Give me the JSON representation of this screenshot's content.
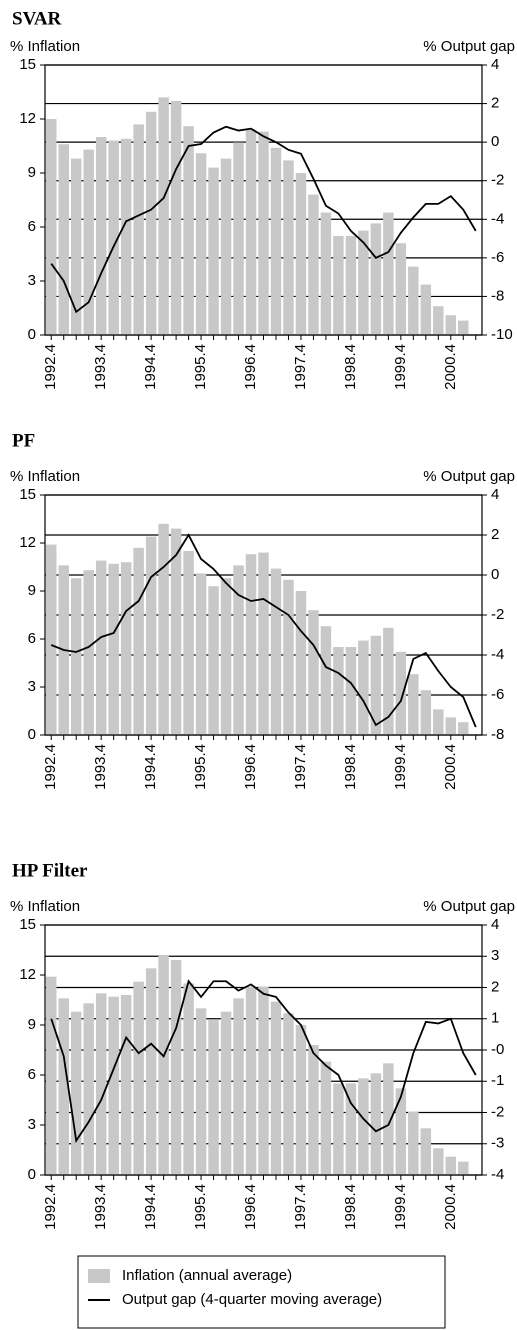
{
  "chart_data": [
    {
      "type": "bar-line",
      "title": "SVAR",
      "y_label": "% Inflation",
      "y2_label": "% Output gap",
      "categories": [
        "1992.4",
        null,
        null,
        null,
        "1993.4",
        null,
        null,
        null,
        "1994.4",
        null,
        null,
        null,
        "1995.4",
        null,
        null,
        null,
        "1996.4",
        null,
        null,
        null,
        "1997.4",
        null,
        null,
        null,
        "1998.4",
        null,
        null,
        null,
        "1999.4",
        null,
        null,
        null,
        "2000.4",
        null,
        null
      ],
      "series": [
        {
          "type": "bar",
          "color": "#c8c8c8",
          "values": [
            12.0,
            10.6,
            9.8,
            10.3,
            11.0,
            10.8,
            10.9,
            11.7,
            12.4,
            13.2,
            13.0,
            11.6,
            10.1,
            9.3,
            9.8,
            10.7,
            11.4,
            11.3,
            10.4,
            9.7,
            9.0,
            7.8,
            6.8,
            5.5,
            5.5,
            5.8,
            6.2,
            6.8,
            5.1,
            3.8,
            2.8,
            1.6,
            1.1,
            0.8,
            null
          ]
        },
        {
          "type": "line",
          "axis": "y2",
          "color": "#000000",
          "values": [
            -6.3,
            -7.2,
            -8.8,
            -8.3,
            -6.8,
            -5.4,
            -4.1,
            -3.8,
            -3.5,
            -2.9,
            -1.4,
            -0.2,
            -0.1,
            0.5,
            0.8,
            0.6,
            0.7,
            0.3,
            0.0,
            -0.4,
            -0.6,
            -1.9,
            -3.3,
            -3.7,
            -4.6,
            -5.2,
            -6.0,
            -5.7,
            -4.7,
            -3.9,
            -3.2,
            -3.2,
            -2.8,
            -3.5,
            -4.6
          ]
        }
      ],
      "ylim": [
        0,
        15
      ],
      "yticks": [
        0,
        3,
        6,
        9,
        12,
        15
      ],
      "y2lim": [
        -10,
        4
      ],
      "y2ticks": [
        -10,
        -8,
        -6,
        -4,
        -2,
        0,
        2,
        4
      ],
      "grid": "y2"
    },
    {
      "type": "bar-line",
      "title": "PF",
      "y_label": "% Inflation",
      "y2_label": "% Output gap",
      "categories": [
        "1992.4",
        null,
        null,
        null,
        "1993.4",
        null,
        null,
        null,
        "1994.4",
        null,
        null,
        null,
        "1995.4",
        null,
        null,
        null,
        "1996.4",
        null,
        null,
        null,
        "1997.4",
        null,
        null,
        null,
        "1998.4",
        null,
        null,
        null,
        "1999.4",
        null,
        null,
        null,
        "2000.4",
        null,
        null
      ],
      "series": [
        {
          "type": "bar",
          "color": "#c8c8c8",
          "values": [
            11.9,
            10.6,
            9.8,
            10.3,
            10.9,
            10.7,
            10.8,
            11.7,
            12.4,
            13.2,
            12.9,
            11.5,
            10.1,
            9.3,
            9.8,
            10.6,
            11.3,
            11.4,
            10.4,
            9.7,
            9.0,
            7.8,
            6.8,
            5.5,
            5.5,
            5.9,
            6.2,
            6.7,
            5.2,
            3.8,
            2.8,
            1.6,
            1.1,
            0.8,
            null
          ]
        },
        {
          "type": "line",
          "axis": "y2",
          "color": "#000000",
          "values": [
            -3.5,
            -3.75,
            -3.85,
            -3.6,
            -3.1,
            -2.9,
            -1.8,
            -1.3,
            -0.1,
            0.4,
            1.0,
            2.0,
            0.8,
            0.3,
            -0.4,
            -1.0,
            -1.3,
            -1.2,
            -1.6,
            -2.0,
            -2.8,
            -3.5,
            -4.6,
            -4.9,
            -5.4,
            -6.3,
            -7.5,
            -7.1,
            -6.3,
            -4.2,
            -3.9,
            -4.8,
            -5.6,
            -6.1,
            -7.6
          ]
        }
      ],
      "ylim": [
        0,
        15
      ],
      "yticks": [
        0,
        3,
        6,
        9,
        12,
        15
      ],
      "y2lim": [
        -8,
        4
      ],
      "y2ticks": [
        -8,
        -6,
        -4,
        -2,
        0,
        2,
        4
      ],
      "grid": "y2"
    },
    {
      "type": "bar-line",
      "title": "HP Filter",
      "y_label": "% Inflation",
      "y2_label": "% Output gap",
      "categories": [
        "1992.4",
        null,
        null,
        null,
        "1993.4",
        null,
        null,
        null,
        "1994.4",
        null,
        null,
        null,
        "1995.4",
        null,
        null,
        null,
        "1996.4",
        null,
        null,
        null,
        "1997.4",
        null,
        null,
        null,
        "1998.4",
        null,
        null,
        null,
        "1999.4",
        null,
        null,
        null,
        "2000.4",
        null,
        null
      ],
      "series": [
        {
          "type": "bar",
          "name": "Inflation (annual average)",
          "color": "#c8c8c8",
          "values": [
            11.9,
            10.6,
            9.8,
            10.3,
            10.9,
            10.7,
            10.8,
            11.6,
            12.4,
            13.2,
            12.9,
            11.5,
            10.0,
            9.3,
            9.8,
            10.6,
            11.3,
            11.3,
            10.4,
            9.7,
            9.0,
            7.8,
            6.8,
            5.5,
            5.5,
            5.8,
            6.1,
            6.7,
            5.2,
            3.8,
            2.8,
            1.6,
            1.1,
            0.8,
            null
          ]
        },
        {
          "type": "line",
          "axis": "y2",
          "name": "Output gap (4-quarter moving average)",
          "color": "#000000",
          "values": [
            1.0,
            -0.2,
            -2.9,
            -2.3,
            -1.6,
            -0.6,
            0.4,
            -0.1,
            0.2,
            -0.2,
            0.7,
            2.2,
            1.7,
            2.2,
            2.2,
            1.9,
            2.1,
            1.8,
            1.7,
            1.2,
            0.8,
            -0.1,
            -0.5,
            -0.8,
            -1.7,
            -2.2,
            -2.6,
            -2.4,
            -1.5,
            -0.1,
            0.9,
            0.85,
            1.0,
            -0.1,
            -0.8
          ]
        }
      ],
      "ylim": [
        0,
        15
      ],
      "yticks": [
        0,
        3,
        6,
        9,
        12,
        15
      ],
      "y2lim": [
        -4,
        4
      ],
      "y2ticks": [
        -4,
        -3,
        -2,
        -1,
        {
          "value": 0,
          "label": "-0"
        },
        1,
        2,
        3,
        4
      ],
      "grid": "y2"
    }
  ]
}
